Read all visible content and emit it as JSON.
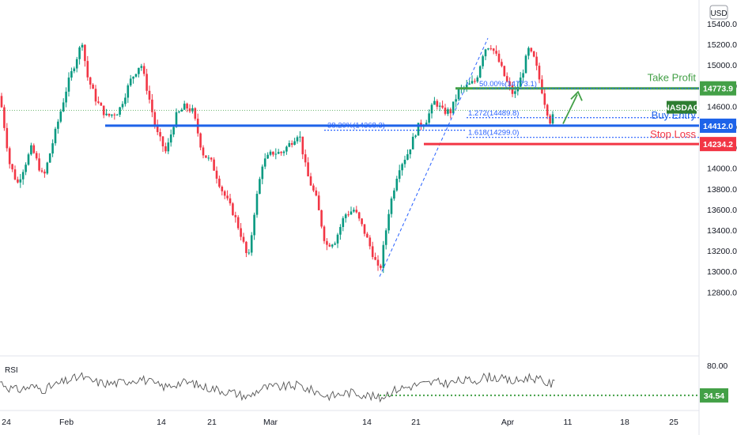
{
  "header": {
    "currency": "USD"
  },
  "rsi_panel": {
    "label": "RSI"
  },
  "chart_data": {
    "type": "candlestick",
    "symbol_tag": "NASDAQ",
    "currency": "USD",
    "x_tick_labels": [
      "24",
      "Feb",
      "14",
      "21",
      "Mar",
      "14",
      "21",
      "Apr",
      "11",
      "18",
      "25"
    ],
    "y_tick_labels": [
      "15400.0",
      "15200.0",
      "15000.0",
      "14800.0",
      "14600.0",
      "14400.0",
      "14200.0",
      "14000.0",
      "13800.0",
      "13600.0",
      "13400.0",
      "13200.0",
      "13000.0",
      "12800.0"
    ],
    "ylim": [
      12700,
      15480
    ],
    "levels": {
      "take_profit": {
        "label": "Take Profit",
        "value": 14773.9,
        "tag": "14773.9",
        "color": "#43a047"
      },
      "buy_entry": {
        "label": "Buy Entry",
        "value": 14412.0,
        "tag": "14412.0",
        "color": "#1e63e9"
      },
      "stop_loss": {
        "label": "Stop Loss",
        "value": 14234.2,
        "tag": "14234.2",
        "color": "#f23645"
      }
    },
    "fib_annotations": [
      {
        "text": "50.00%(14773.1)",
        "value": 14773.1
      },
      {
        "text": "1.272(14489.8)",
        "value": 14489.8
      },
      {
        "text": "38.20%(14368.3)",
        "value": 14368.3
      },
      {
        "text": "1.618(14299.0)",
        "value": 14299.0
      }
    ],
    "current_price_level": 14560,
    "rsi": {
      "label": "RSI",
      "y_tick_label": "80.00",
      "level_tag": "34.54",
      "level_value": 34.54,
      "ylim": [
        20,
        85
      ]
    },
    "colors": {
      "up": "#089981",
      "down": "#f23645",
      "rsi_line": "#555555"
    }
  }
}
